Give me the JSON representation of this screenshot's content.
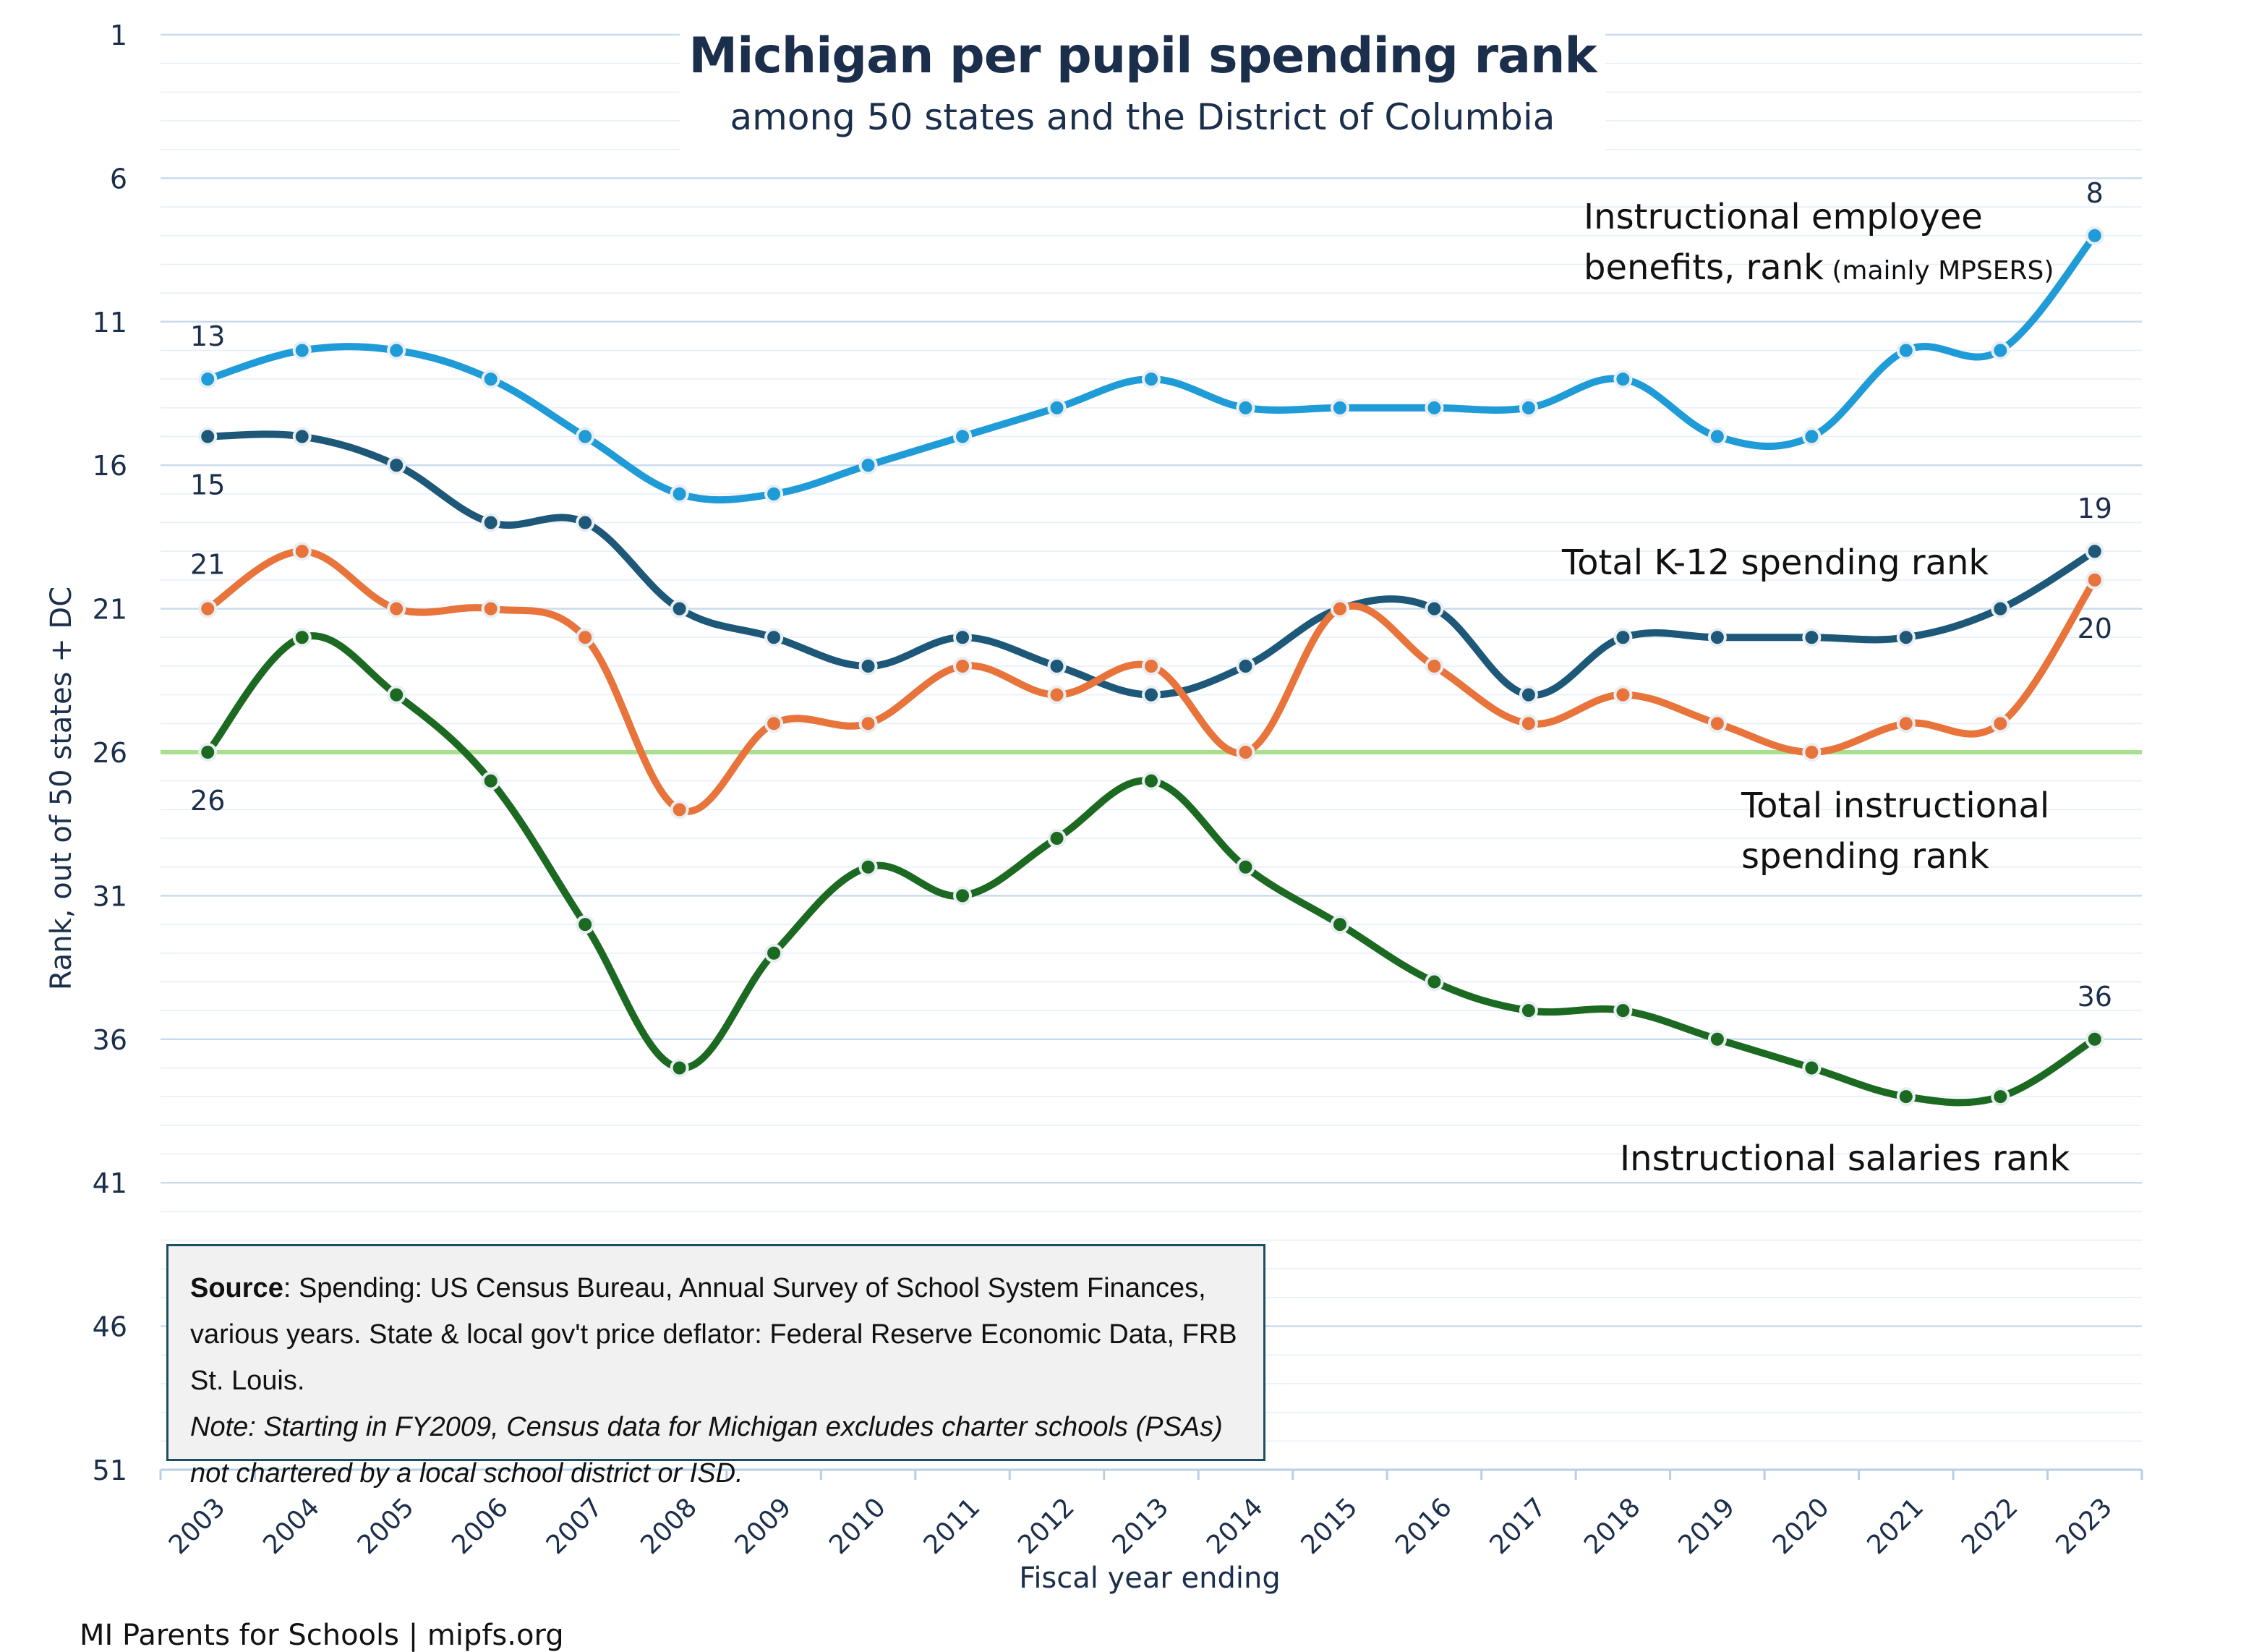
{
  "title": "Michigan per pupil spending rank",
  "subtitle": "among 50 states and the District of Columbia",
  "source": {
    "label": "Source",
    "text": ": Spending: US Census Bureau, Annual Survey of School System Finances, various years. State & local gov't price deflator: Federal Reserve Economic Data, FRB St. Louis.",
    "note": "Note: Starting in FY2009, Census data for Michigan excludes charter schools (PSAs) not chartered by a local school district or ISD."
  },
  "footer": "MI Parents for Schools | mipfs.org",
  "chart_data": {
    "type": "line",
    "title": "Michigan per pupil spending rank",
    "subtitle": "among 50 states and the District of Columbia",
    "xlabel": "Fiscal year ending",
    "ylabel": "Rank, out of 50 states + DC",
    "ylim": [
      1,
      51
    ],
    "y_inverted": true,
    "yticks": [
      "1",
      "6",
      "11",
      "16",
      "21",
      "26",
      "31",
      "36",
      "41",
      "46",
      "51"
    ],
    "categories": [
      "2003",
      "2004",
      "2005",
      "2006",
      "2007",
      "2008",
      "2009",
      "2010",
      "2011",
      "2012",
      "2013",
      "2014",
      "2015",
      "2016",
      "2017",
      "2018",
      "2019",
      "2020",
      "2021",
      "2022",
      "2023"
    ],
    "reference_line": {
      "value": 26,
      "color": "#a8e08f"
    },
    "series": [
      {
        "name": "Instructional employee benefits, rank",
        "name_note": "(mainly MPSERS)",
        "color": "#1f9bd7",
        "values": [
          13,
          12,
          12,
          13,
          15,
          17,
          17,
          16,
          15,
          14,
          13,
          14,
          14,
          14,
          14,
          13,
          15,
          15,
          12,
          12,
          8
        ]
      },
      {
        "name": "Total K-12 spending rank",
        "color": "#1d5879",
        "values": [
          15,
          15,
          16,
          18,
          18,
          21,
          22,
          23,
          22,
          23,
          24,
          23,
          21,
          21,
          24,
          22,
          22,
          22,
          22,
          21,
          19
        ]
      },
      {
        "name": "Total instructional spending rank",
        "color": "#e8743b",
        "values": [
          21,
          19,
          21,
          21,
          22,
          28,
          25,
          25,
          23,
          24,
          23,
          26,
          21,
          23,
          25,
          24,
          25,
          26,
          25,
          25,
          20
        ]
      },
      {
        "name": "Instructional salaries rank",
        "color": "#1c6a22",
        "values": [
          26,
          22,
          24,
          27,
          32,
          37,
          33,
          30,
          31,
          29,
          27,
          30,
          32,
          34,
          35,
          35,
          36,
          37,
          38,
          38,
          36
        ]
      }
    ],
    "annotations": [
      {
        "text": "13",
        "series": 0,
        "index": 0
      },
      {
        "text": "15",
        "series": 1,
        "index": 0
      },
      {
        "text": "21",
        "series": 2,
        "index": 0
      },
      {
        "text": "26",
        "series": 3,
        "index": 0
      },
      {
        "text": "8",
        "series": 0,
        "index": 20
      },
      {
        "text": "19",
        "series": 1,
        "index": 20
      },
      {
        "text": "20",
        "series": 2,
        "index": 20
      },
      {
        "text": "36",
        "series": 3,
        "index": 20
      }
    ],
    "series_labels": [
      {
        "lines": [
          "Instructional employee",
          "benefits, rank"
        ],
        "suffix": "(mainly MPSERS)",
        "series": 0
      },
      {
        "lines": [
          "Total K-12 spending rank"
        ],
        "series": 1
      },
      {
        "lines": [
          "Total instructional",
          "spending rank"
        ],
        "series": 2
      },
      {
        "lines": [
          "Instructional salaries rank"
        ],
        "series": 3
      }
    ]
  }
}
